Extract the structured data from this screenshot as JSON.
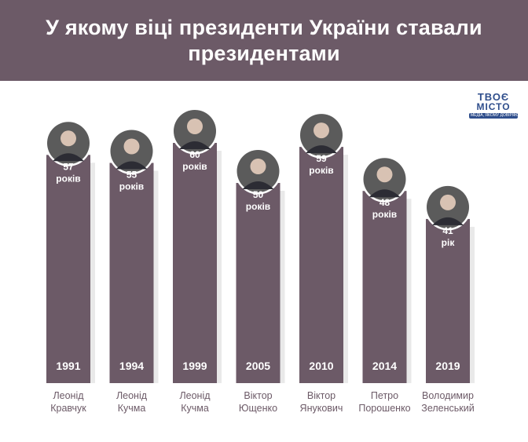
{
  "title": {
    "line1": "У якому віці президенти України ставали",
    "line2": "президентами"
  },
  "logo": {
    "line1": "ТВОЄ",
    "line2": "МІСТО",
    "tagline": "МЕДІА, ЯКОМУ ДОВІРЯЮТЬ"
  },
  "chart_data": {
    "type": "bar",
    "categories": [
      "Леонід Кравчук",
      "Леонід Кучма",
      "Леонід Кучма",
      "Віктор Ющенко",
      "Віктор Янукович",
      "Петро Порошенко",
      "Володимир Зеленський"
    ],
    "name_lines": [
      [
        "Леонід",
        "Кравчук"
      ],
      [
        "Леонід",
        "Кучма"
      ],
      [
        "Леонід",
        "Кучма"
      ],
      [
        "Віктор",
        "Ющенко"
      ],
      [
        "Віктор",
        "Янукович"
      ],
      [
        "Петро",
        "Порошенко"
      ],
      [
        "Володимир",
        "Зеленський"
      ]
    ],
    "years": [
      "1991",
      "1994",
      "1999",
      "2005",
      "2010",
      "2014",
      "2019"
    ],
    "values": [
      57,
      55,
      60,
      50,
      59,
      48,
      41
    ],
    "value_labels": [
      "років",
      "років",
      "років",
      "років",
      "років",
      "років",
      "рік"
    ],
    "bar_color": "#6c5a67",
    "title": "У якому віці президенти України ставали президентами"
  }
}
